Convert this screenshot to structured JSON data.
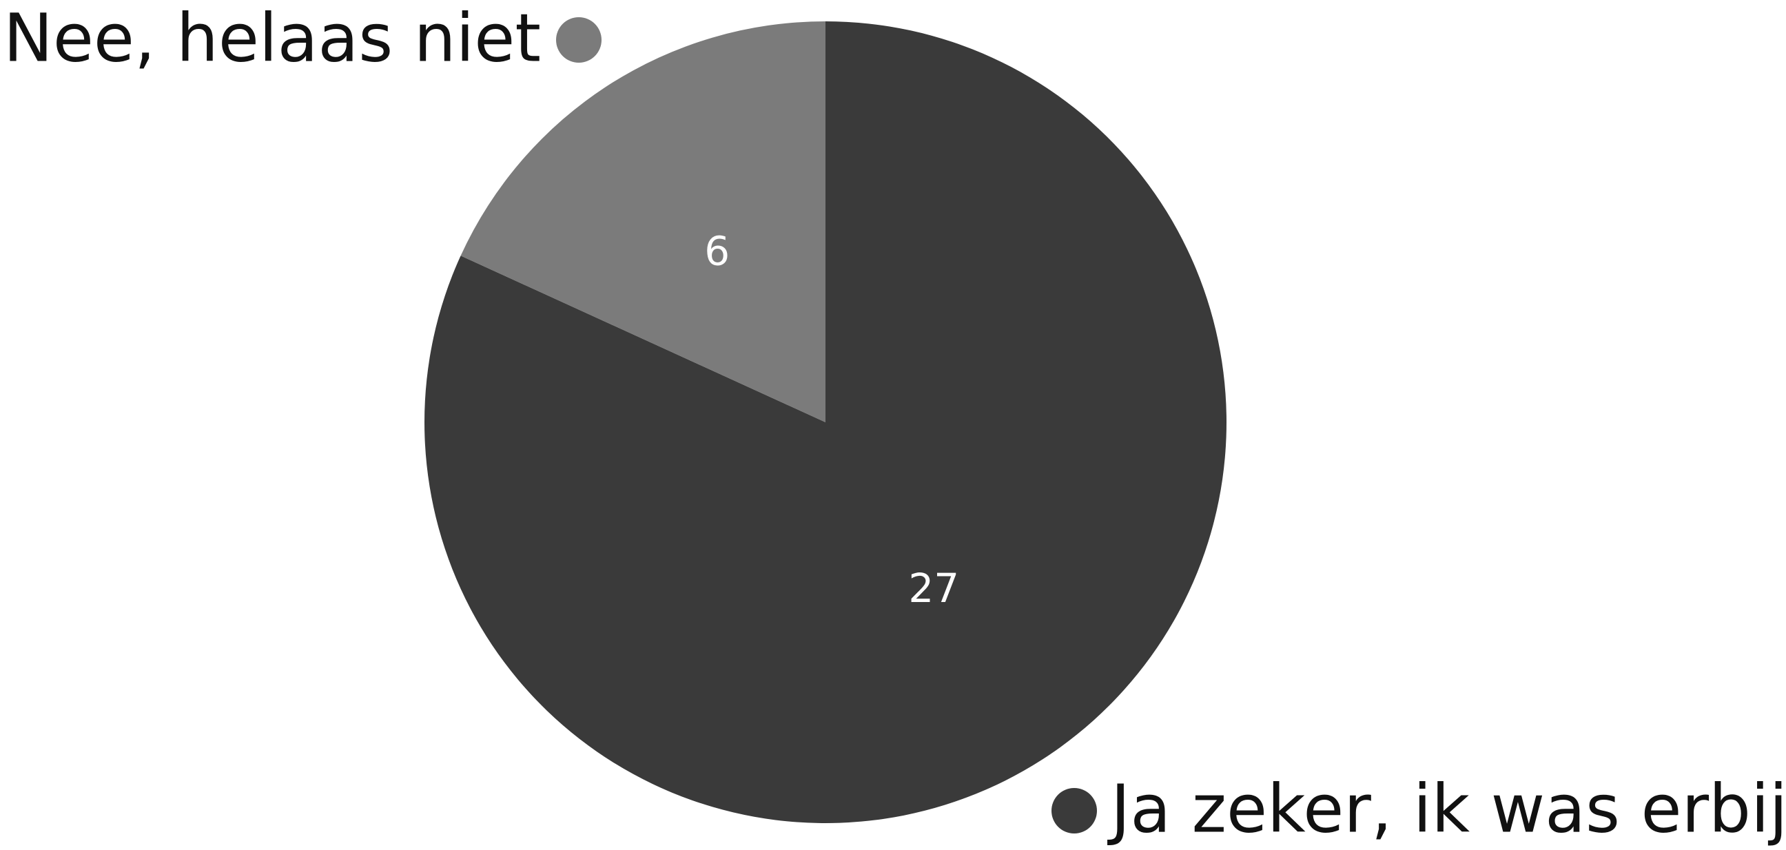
{
  "chart_data": {
    "type": "pie",
    "categories": [
      "Ja zeker, ik was erbij!",
      "Nee, helaas niet"
    ],
    "values": [
      27,
      6
    ],
    "colors": [
      "#3a3a3a",
      "#7b7b7b"
    ]
  }
}
